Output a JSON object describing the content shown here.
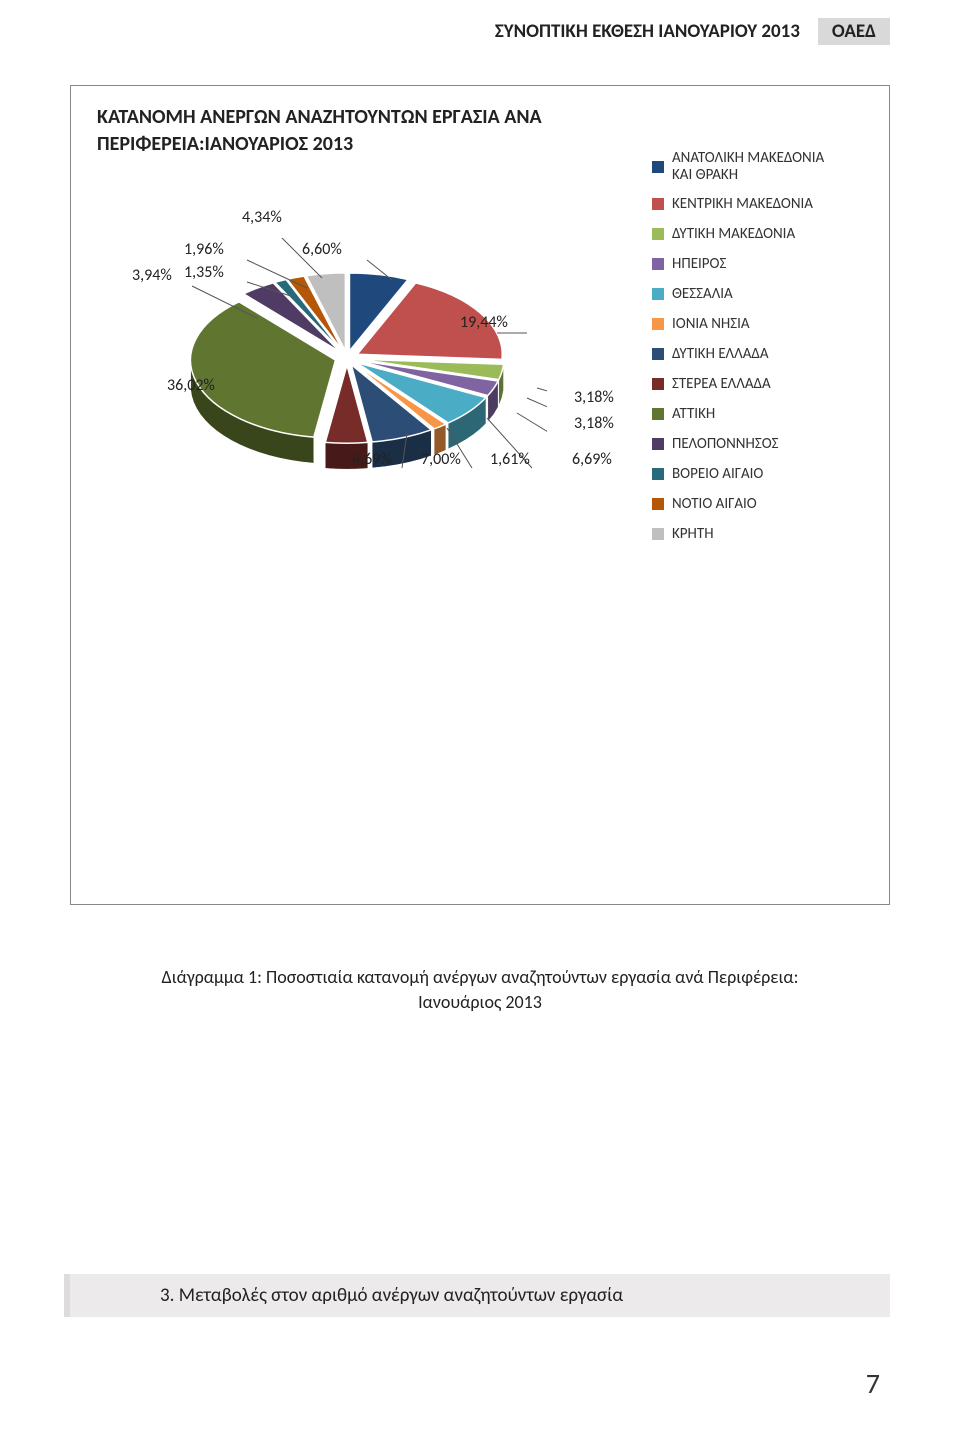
{
  "header": {
    "title": "ΣΥΝΟΠΤΙΚΗ ΕΚΘΕΣΗ ΙΑΝΟΥΑΡΙΟΥ  2013",
    "badge": "ΟΑΕΔ"
  },
  "chart": {
    "type": "pie-3d",
    "title_line1": "ΚΑΤΑΝΟΜΗ ΑΝΕΡΓΩΝ ΑΝΑΖΗΤΟΥΝΤΩΝ ΕΡΓΑΣΙΑ ΑΝΑ",
    "title_line2": "ΠΕΡΙΦΕΡΕΙΑ:ΙΑΝΟΥΑΡΙΟΣ 2013",
    "title_fontsize": 20,
    "background_color": "#ffffff",
    "border_color": "#888888",
    "series": [
      {
        "label": "ΑΝΑΤΟΛΙΚΗ ΜΑΚΕΔΟΝΙΑ ΚΑΙ ΘΡΑΚΗ",
        "value": 6.6,
        "pct": "6,60%",
        "color": "#1f497d"
      },
      {
        "label": "ΚΕΝΤΡΙΚΗ ΜΑΚΕΔΟΝΙΑ",
        "value": 19.44,
        "pct": "19,44%",
        "color": "#c0504d"
      },
      {
        "label": "ΔΥΤΙΚΗ ΜΑΚΕΔΟΝΙΑ",
        "value": 3.18,
        "pct": "3,18%",
        "color": "#9bbb59"
      },
      {
        "label": "ΗΠΕΙΡΟΣ",
        "value": 3.18,
        "pct": "3,18%",
        "color": "#8064a2"
      },
      {
        "label": "ΘΕΣΣΑΛΙΑ",
        "value": 6.69,
        "pct": "6,69%",
        "color": "#4bacc6"
      },
      {
        "label": "ΙΟΝΙΑ ΝΗΣΙΑ",
        "value": 1.61,
        "pct": "1,61%",
        "color": "#f79646"
      },
      {
        "label": "ΔΥΤΙΚΗ ΕΛΛΑΔΑ",
        "value": 7.0,
        "pct": "7,00%",
        "color": "#2c4d75"
      },
      {
        "label": "ΣΤΕΡΕΑ ΕΛΛΑΔΑ",
        "value": 4.69,
        "pct": "4,69%",
        "color": "#772c2a"
      },
      {
        "label": "ΑΤΤΙΚΗ",
        "value": 36.02,
        "pct": "36,02%",
        "color": "#5f7530"
      },
      {
        "label": "ΠΕΛΟΠΟΝΝΗΣΟΣ",
        "value": 3.94,
        "pct": "3,94%",
        "color": "#4f3b63"
      },
      {
        "label": "ΒΟΡΕΙΟ ΑΙΓΑΙΟ",
        "value": 1.35,
        "pct": "1,35%",
        "color": "#276a7c"
      },
      {
        "label": "ΝΟΤΙΟ ΑΙΓΑΙΟ",
        "value": 1.96,
        "pct": "1,96%",
        "color": "#b65708"
      },
      {
        "label": "ΚΡΗΤΗ",
        "value": 4.34,
        "pct": "4,34%",
        "color": "#bfbfbf"
      }
    ],
    "legend_fontsize": 15,
    "callout_fontsize": 16,
    "exploded": true
  },
  "caption": {
    "line1": "Διάγραμμα 1: Ποσοστιαία κατανομή ανέργων αναζητούντων εργασία ανά Περιφέρεια:",
    "line2": "Ιανουάριος 2013"
  },
  "section_heading": "3. Μεταβολές στον αριθμό ανέργων αναζητούντων εργασία",
  "page_number": "7"
}
